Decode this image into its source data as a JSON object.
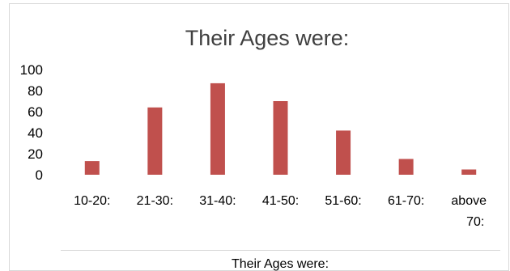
{
  "chart_data": {
    "type": "bar",
    "title": "Their Ages were:",
    "xlabel": "Their Ages were:",
    "ylabel": "",
    "categories": [
      "10-20:",
      "21-30:",
      "31-40:",
      "41-50:",
      "51-60:",
      "61-70:",
      "above 70:"
    ],
    "category_lines": [
      [
        "10-20:"
      ],
      [
        "21-30:"
      ],
      [
        "31-40:"
      ],
      [
        "41-50:"
      ],
      [
        "51-60:"
      ],
      [
        "61-70:"
      ],
      [
        "above",
        "70:"
      ]
    ],
    "values": [
      13,
      64,
      87,
      70,
      42,
      15,
      5
    ],
    "ylim": [
      0,
      100
    ],
    "yticks": [
      "0",
      "20",
      "40",
      "60",
      "80",
      "100"
    ],
    "grid": false,
    "legend": "none",
    "bar_color": "#C0504D",
    "frame_color": "#d9d9d9"
  }
}
